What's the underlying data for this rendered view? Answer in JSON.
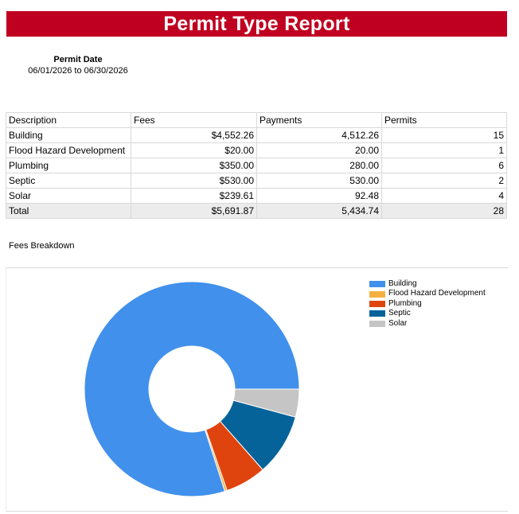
{
  "report": {
    "title": "Permit Type Report",
    "banner_color": "#c00020",
    "date_label": "Permit Date",
    "date_range": "06/01/2026 to 06/30/2026"
  },
  "table": {
    "headers": [
      "Description",
      "Fees",
      "Payments",
      "Permits"
    ],
    "rows": [
      [
        "Building",
        "$4,552.26",
        "4,512.26",
        "15"
      ],
      [
        "Flood Hazard Development",
        "$20.00",
        "20.00",
        "1"
      ],
      [
        "Plumbing",
        "$350.00",
        "280.00",
        "6"
      ],
      [
        "Septic",
        "$530.00",
        "530.00",
        "2"
      ],
      [
        "Solar",
        "$239.61",
        "92.48",
        "4"
      ]
    ],
    "total": [
      "Total",
      "$5,691.87",
      "5,434.74",
      "28"
    ]
  },
  "fees_section_title": "Fees Breakdown",
  "chart_data": {
    "type": "pie",
    "donut": true,
    "categories": [
      "Building",
      "Flood Hazard Development",
      "Plumbing",
      "Septic",
      "Solar"
    ],
    "values": [
      4552.26,
      20.0,
      350.0,
      530.0,
      239.61
    ],
    "colors": [
      "#4190ec",
      "#f5b041",
      "#e0440e",
      "#05639a",
      "#c5c5c5"
    ],
    "legend_position": "top-right"
  }
}
